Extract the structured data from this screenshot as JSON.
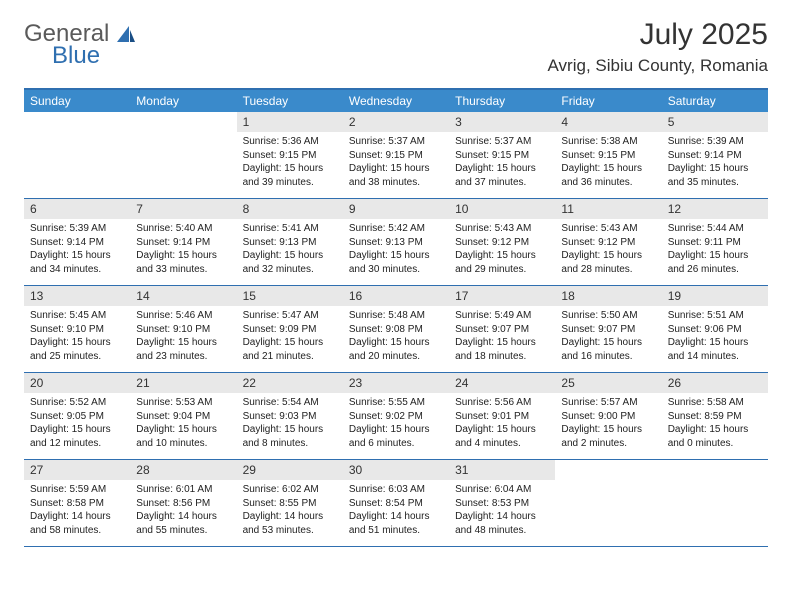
{
  "logo": {
    "word1": "General",
    "word2": "Blue"
  },
  "title": {
    "month": "July 2025",
    "location": "Avrig, Sibiu County, Romania"
  },
  "colors": {
    "header_bar": "#3a8acb",
    "header_text": "#ffffff",
    "rule": "#2f6fb0",
    "daynum_bg": "#e8e8e8",
    "body_text": "#222222",
    "logo_gray": "#5a5a5a",
    "logo_blue": "#2f6fb0"
  },
  "day_headers": [
    "Sunday",
    "Monday",
    "Tuesday",
    "Wednesday",
    "Thursday",
    "Friday",
    "Saturday"
  ],
  "weeks": [
    [
      null,
      null,
      {
        "n": "1",
        "sr": "Sunrise: 5:36 AM",
        "ss": "Sunset: 9:15 PM",
        "dl": "Daylight: 15 hours and 39 minutes."
      },
      {
        "n": "2",
        "sr": "Sunrise: 5:37 AM",
        "ss": "Sunset: 9:15 PM",
        "dl": "Daylight: 15 hours and 38 minutes."
      },
      {
        "n": "3",
        "sr": "Sunrise: 5:37 AM",
        "ss": "Sunset: 9:15 PM",
        "dl": "Daylight: 15 hours and 37 minutes."
      },
      {
        "n": "4",
        "sr": "Sunrise: 5:38 AM",
        "ss": "Sunset: 9:15 PM",
        "dl": "Daylight: 15 hours and 36 minutes."
      },
      {
        "n": "5",
        "sr": "Sunrise: 5:39 AM",
        "ss": "Sunset: 9:14 PM",
        "dl": "Daylight: 15 hours and 35 minutes."
      }
    ],
    [
      {
        "n": "6",
        "sr": "Sunrise: 5:39 AM",
        "ss": "Sunset: 9:14 PM",
        "dl": "Daylight: 15 hours and 34 minutes."
      },
      {
        "n": "7",
        "sr": "Sunrise: 5:40 AM",
        "ss": "Sunset: 9:14 PM",
        "dl": "Daylight: 15 hours and 33 minutes."
      },
      {
        "n": "8",
        "sr": "Sunrise: 5:41 AM",
        "ss": "Sunset: 9:13 PM",
        "dl": "Daylight: 15 hours and 32 minutes."
      },
      {
        "n": "9",
        "sr": "Sunrise: 5:42 AM",
        "ss": "Sunset: 9:13 PM",
        "dl": "Daylight: 15 hours and 30 minutes."
      },
      {
        "n": "10",
        "sr": "Sunrise: 5:43 AM",
        "ss": "Sunset: 9:12 PM",
        "dl": "Daylight: 15 hours and 29 minutes."
      },
      {
        "n": "11",
        "sr": "Sunrise: 5:43 AM",
        "ss": "Sunset: 9:12 PM",
        "dl": "Daylight: 15 hours and 28 minutes."
      },
      {
        "n": "12",
        "sr": "Sunrise: 5:44 AM",
        "ss": "Sunset: 9:11 PM",
        "dl": "Daylight: 15 hours and 26 minutes."
      }
    ],
    [
      {
        "n": "13",
        "sr": "Sunrise: 5:45 AM",
        "ss": "Sunset: 9:10 PM",
        "dl": "Daylight: 15 hours and 25 minutes."
      },
      {
        "n": "14",
        "sr": "Sunrise: 5:46 AM",
        "ss": "Sunset: 9:10 PM",
        "dl": "Daylight: 15 hours and 23 minutes."
      },
      {
        "n": "15",
        "sr": "Sunrise: 5:47 AM",
        "ss": "Sunset: 9:09 PM",
        "dl": "Daylight: 15 hours and 21 minutes."
      },
      {
        "n": "16",
        "sr": "Sunrise: 5:48 AM",
        "ss": "Sunset: 9:08 PM",
        "dl": "Daylight: 15 hours and 20 minutes."
      },
      {
        "n": "17",
        "sr": "Sunrise: 5:49 AM",
        "ss": "Sunset: 9:07 PM",
        "dl": "Daylight: 15 hours and 18 minutes."
      },
      {
        "n": "18",
        "sr": "Sunrise: 5:50 AM",
        "ss": "Sunset: 9:07 PM",
        "dl": "Daylight: 15 hours and 16 minutes."
      },
      {
        "n": "19",
        "sr": "Sunrise: 5:51 AM",
        "ss": "Sunset: 9:06 PM",
        "dl": "Daylight: 15 hours and 14 minutes."
      }
    ],
    [
      {
        "n": "20",
        "sr": "Sunrise: 5:52 AM",
        "ss": "Sunset: 9:05 PM",
        "dl": "Daylight: 15 hours and 12 minutes."
      },
      {
        "n": "21",
        "sr": "Sunrise: 5:53 AM",
        "ss": "Sunset: 9:04 PM",
        "dl": "Daylight: 15 hours and 10 minutes."
      },
      {
        "n": "22",
        "sr": "Sunrise: 5:54 AM",
        "ss": "Sunset: 9:03 PM",
        "dl": "Daylight: 15 hours and 8 minutes."
      },
      {
        "n": "23",
        "sr": "Sunrise: 5:55 AM",
        "ss": "Sunset: 9:02 PM",
        "dl": "Daylight: 15 hours and 6 minutes."
      },
      {
        "n": "24",
        "sr": "Sunrise: 5:56 AM",
        "ss": "Sunset: 9:01 PM",
        "dl": "Daylight: 15 hours and 4 minutes."
      },
      {
        "n": "25",
        "sr": "Sunrise: 5:57 AM",
        "ss": "Sunset: 9:00 PM",
        "dl": "Daylight: 15 hours and 2 minutes."
      },
      {
        "n": "26",
        "sr": "Sunrise: 5:58 AM",
        "ss": "Sunset: 8:59 PM",
        "dl": "Daylight: 15 hours and 0 minutes."
      }
    ],
    [
      {
        "n": "27",
        "sr": "Sunrise: 5:59 AM",
        "ss": "Sunset: 8:58 PM",
        "dl": "Daylight: 14 hours and 58 minutes."
      },
      {
        "n": "28",
        "sr": "Sunrise: 6:01 AM",
        "ss": "Sunset: 8:56 PM",
        "dl": "Daylight: 14 hours and 55 minutes."
      },
      {
        "n": "29",
        "sr": "Sunrise: 6:02 AM",
        "ss": "Sunset: 8:55 PM",
        "dl": "Daylight: 14 hours and 53 minutes."
      },
      {
        "n": "30",
        "sr": "Sunrise: 6:03 AM",
        "ss": "Sunset: 8:54 PM",
        "dl": "Daylight: 14 hours and 51 minutes."
      },
      {
        "n": "31",
        "sr": "Sunrise: 6:04 AM",
        "ss": "Sunset: 8:53 PM",
        "dl": "Daylight: 14 hours and 48 minutes."
      },
      null,
      null
    ]
  ]
}
